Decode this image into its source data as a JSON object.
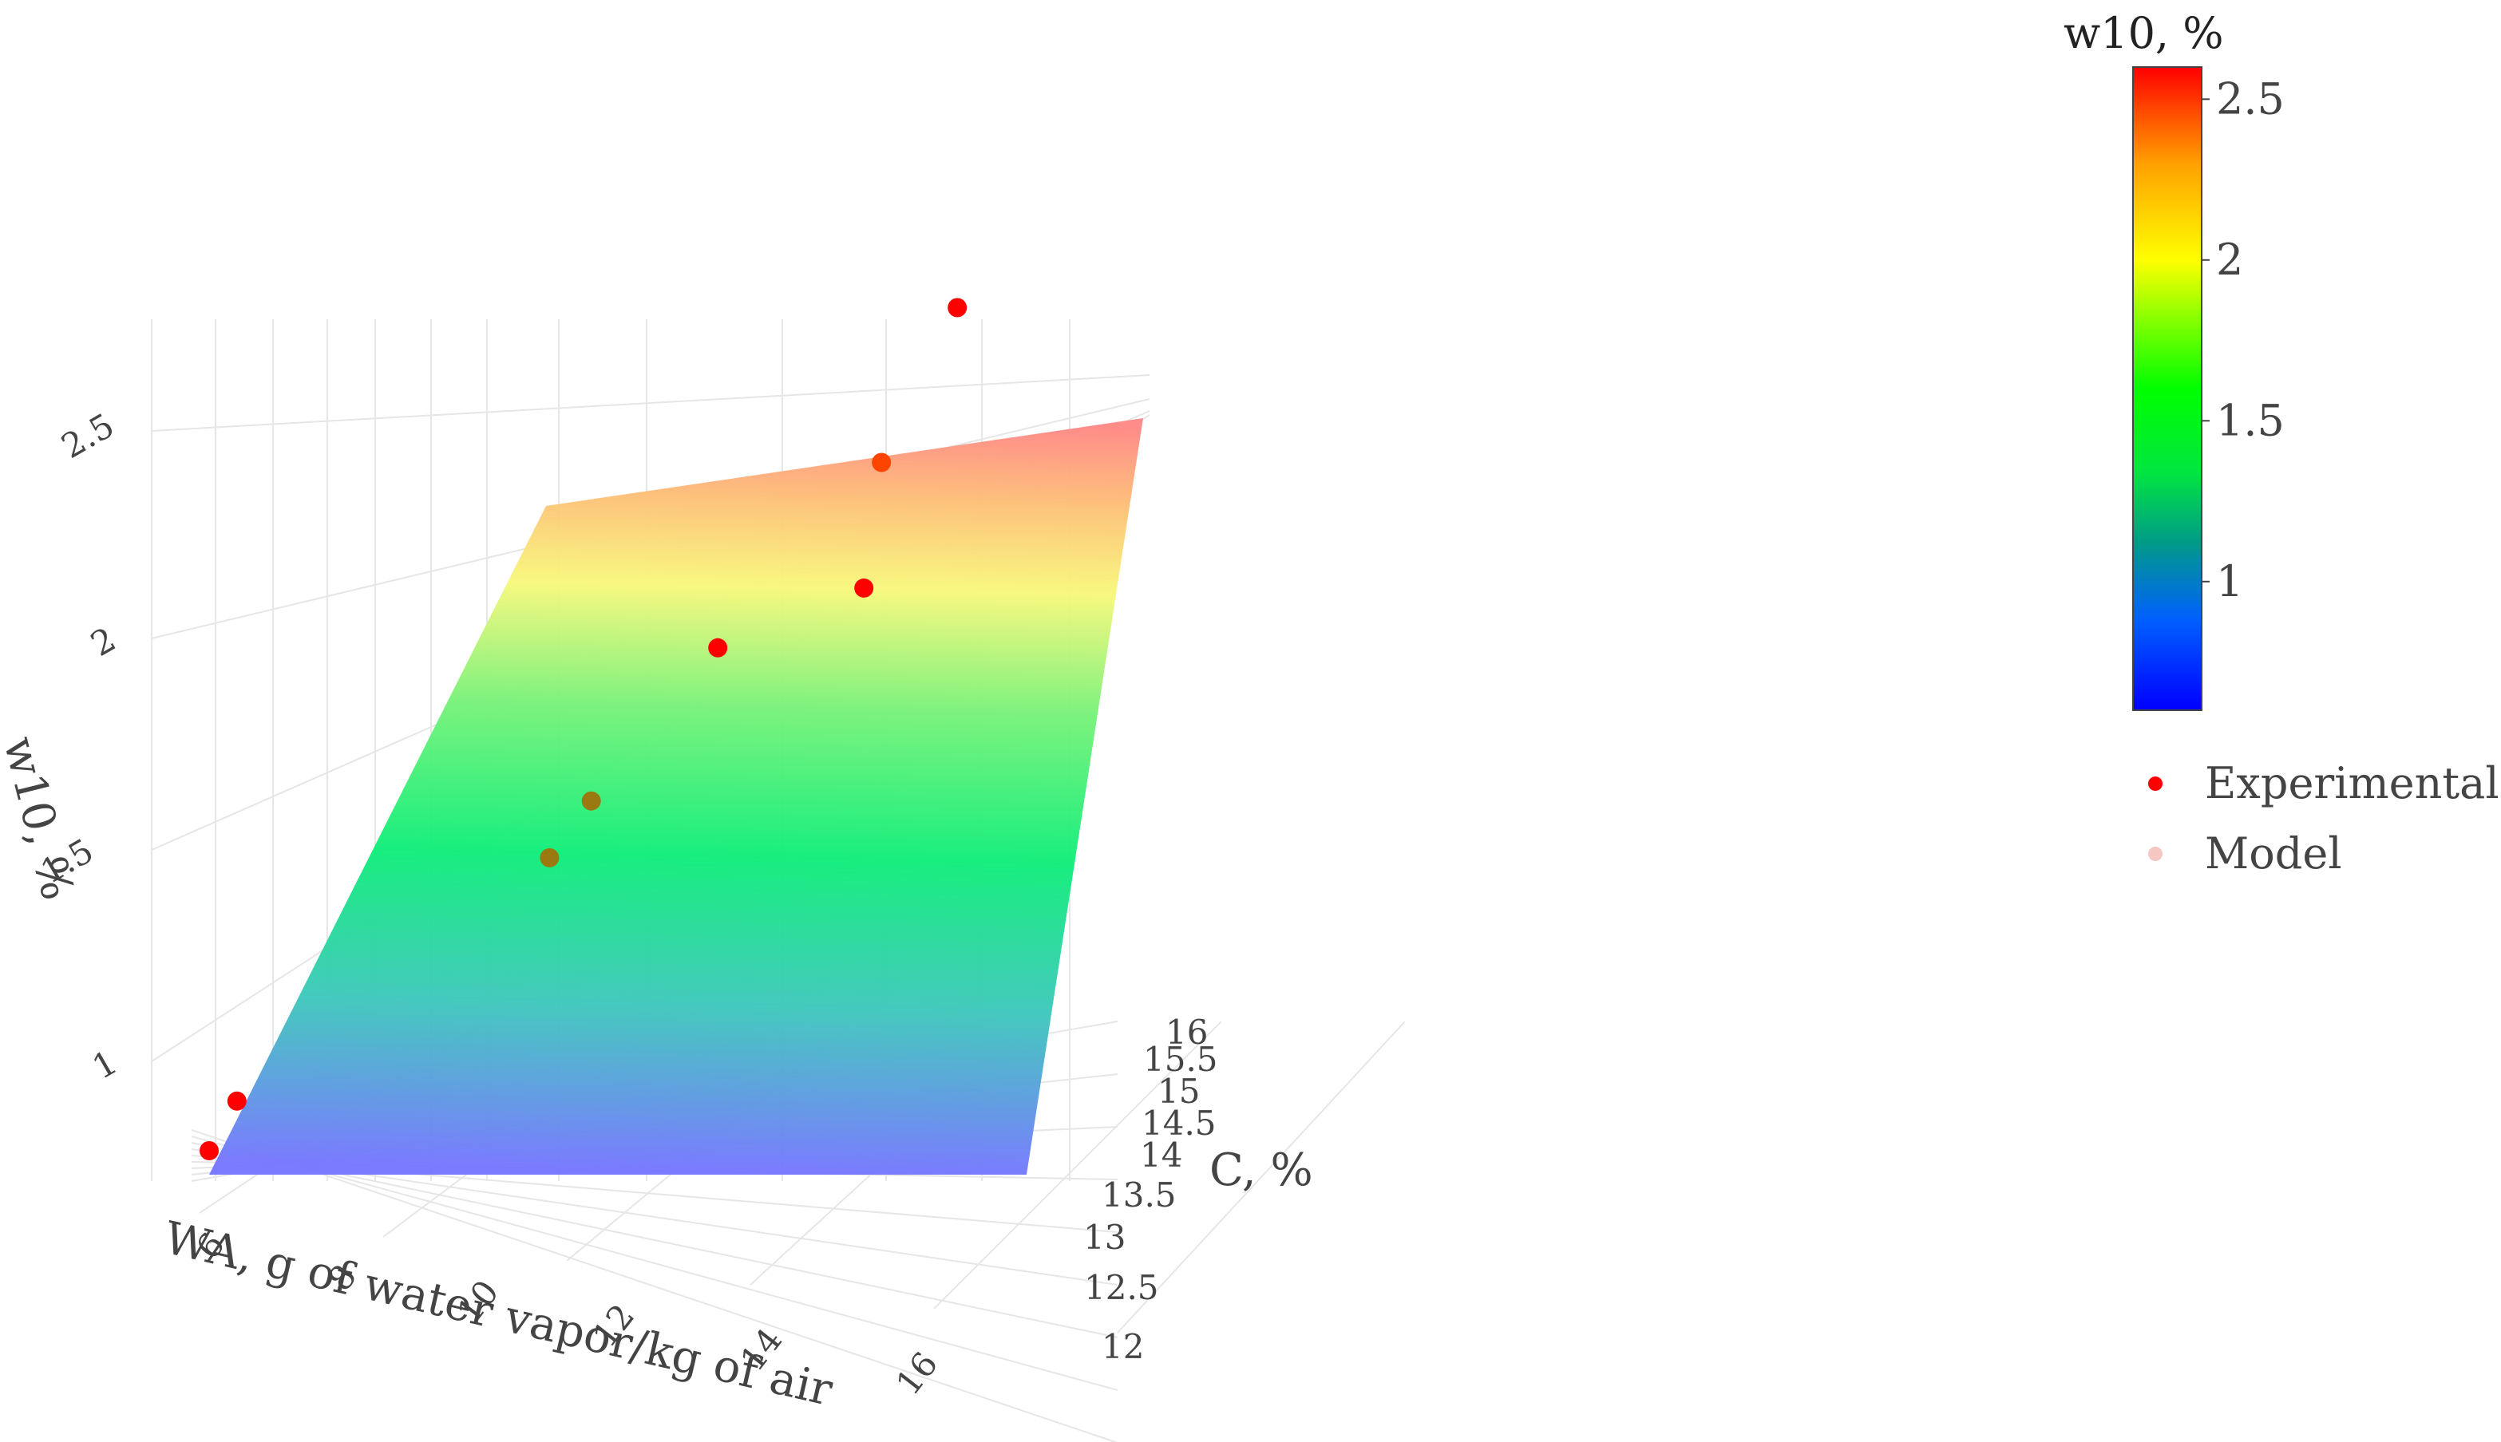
{
  "chart_data": {
    "type": "surface3d",
    "x_axis": {
      "title": "WA, g of water vapor/kg of air",
      "ticks": [
        "6",
        "8",
        "10",
        "12",
        "14",
        "16"
      ]
    },
    "y_axis": {
      "title": "C, %",
      "ticks": [
        "12",
        "12.5",
        "13",
        "13.5",
        "14",
        "14.5",
        "15",
        "15.5",
        "16"
      ]
    },
    "z_axis": {
      "title": "w10, %",
      "ticks": [
        "1",
        "1.5",
        "2",
        "2.5"
      ]
    },
    "surface": {
      "name": "Model",
      "range": [
        0.7,
        2.5
      ]
    },
    "series": [
      {
        "name": "Experimental",
        "color": "#ff0000",
        "points": [
          {
            "x": 5,
            "y": 12,
            "z": 0.72
          },
          {
            "x": 5.5,
            "y": 12,
            "z": 0.84
          },
          {
            "x": 10.5,
            "y": 14,
            "z": 1.38
          },
          {
            "x": 11,
            "y": 14.5,
            "z": 1.5
          },
          {
            "x": 13,
            "y": 15.2,
            "z": 1.85
          },
          {
            "x": 16,
            "y": 15.4,
            "z": 2.3
          },
          {
            "x": 16.5,
            "y": 14.2,
            "z": 2.05
          },
          {
            "x": 17,
            "y": 16,
            "z": 2.65
          }
        ]
      }
    ],
    "colorbar": {
      "title": "w10, %",
      "ticks": [
        "1",
        "1.5",
        "2",
        "2.5"
      ],
      "range": [
        0.6,
        2.6
      ],
      "colorscale": [
        "#0000ff",
        "#00ff00",
        "#ffff00",
        "#ff0000"
      ]
    },
    "legend": {
      "position": "right",
      "items": [
        {
          "label": "Experimental",
          "color": "#ff0000"
        },
        {
          "label": "Model",
          "color": "#f4c7c3"
        }
      ]
    }
  }
}
